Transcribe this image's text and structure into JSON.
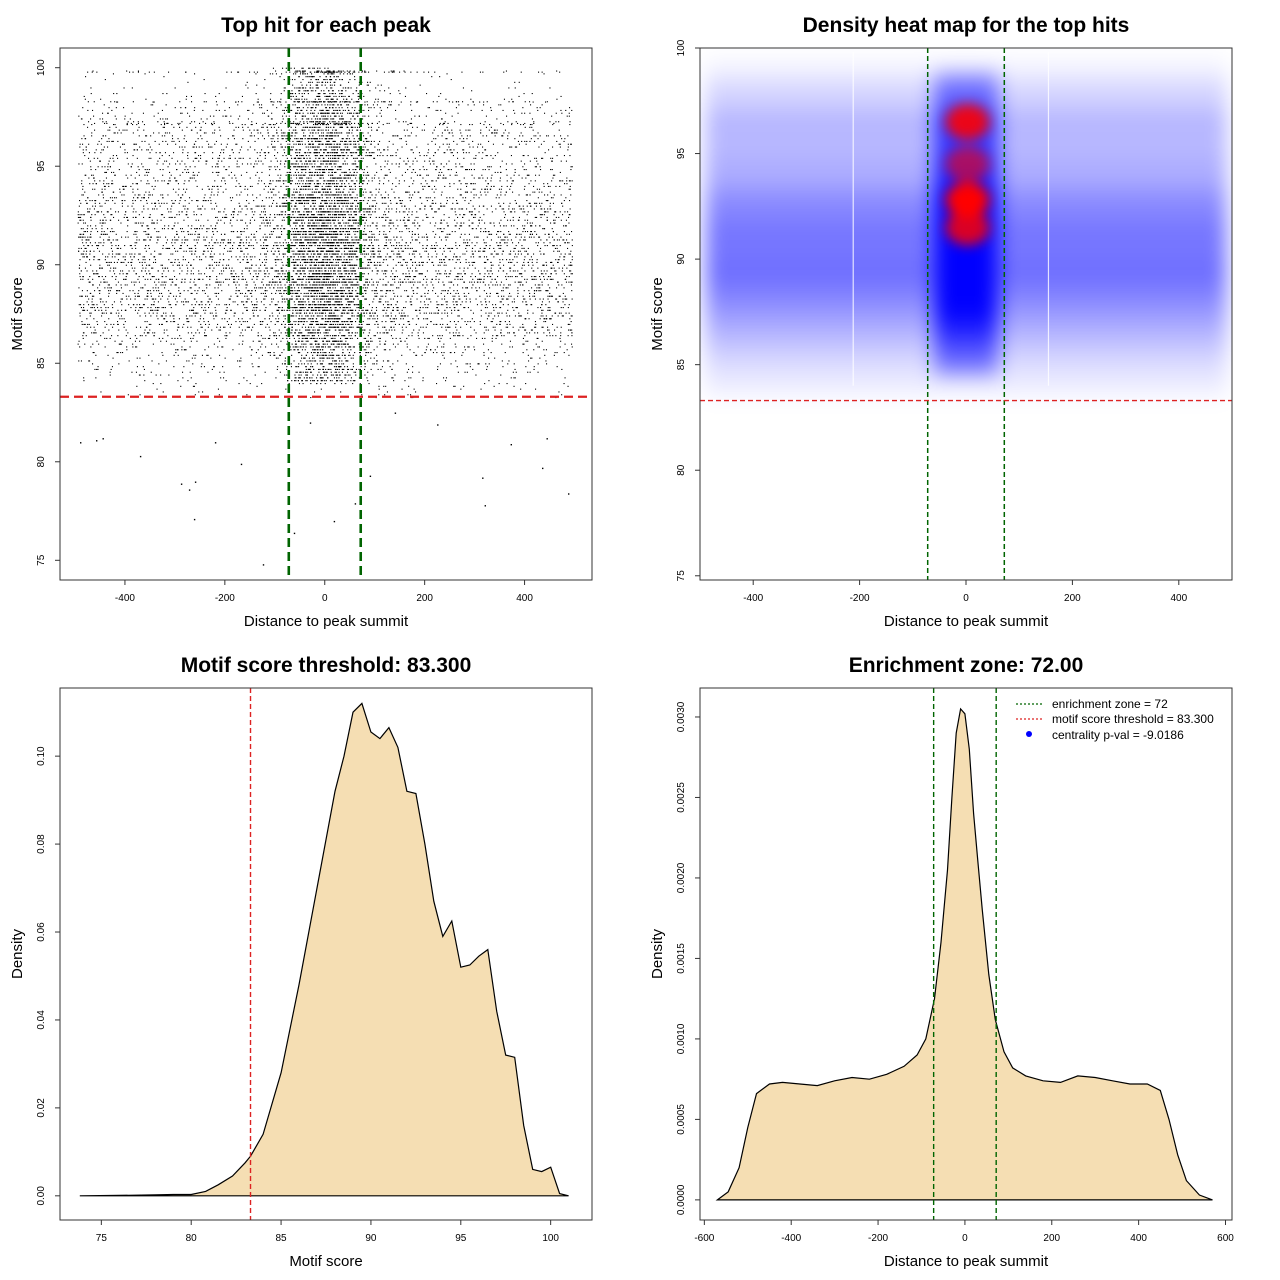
{
  "figure": {
    "colors": {
      "points": "#000000",
      "center_lines": "#006400",
      "threshold_line": "#dd2222",
      "density_fill": "#f5deb3",
      "heat_low": "#0000ff",
      "heat_high": "#ff0000"
    }
  },
  "chart_data": [
    {
      "type": "scatter",
      "title": "Top hit for each peak",
      "xlabel": "Distance to peak summit",
      "ylabel": "Motif score",
      "xlim": [
        -530,
        535
      ],
      "ylim": [
        74,
        101
      ],
      "xticks": [
        "-400",
        "-200",
        "0",
        "200",
        "400"
      ],
      "xtick_values": [
        -400,
        -200,
        0,
        200,
        400
      ],
      "yticks": [
        "75",
        "80",
        "85",
        "90",
        "95",
        "100"
      ],
      "ytick_values": [
        75,
        80,
        85,
        90,
        95,
        100
      ],
      "vlines": [
        -72,
        72
      ],
      "hline": 83.3,
      "n_points": 11000,
      "outliers": [
        {
          "x": -124,
          "y": 74.8
        },
        {
          "x": -262,
          "y": 77.1
        },
        {
          "x": -272,
          "y": 78.6
        },
        {
          "x": -288,
          "y": 78.9
        },
        {
          "x": -260,
          "y": 79.0
        },
        {
          "x": -168,
          "y": 79.9
        },
        {
          "x": -370,
          "y": 80.3
        },
        {
          "x": -490,
          "y": 81.0
        },
        {
          "x": -458,
          "y": 81.1
        },
        {
          "x": -445,
          "y": 81.2
        },
        {
          "x": -220,
          "y": 81.0
        },
        {
          "x": 315,
          "y": 79.2
        },
        {
          "x": 372,
          "y": 80.9
        },
        {
          "x": 435,
          "y": 79.7
        },
        {
          "x": 487,
          "y": 78.4
        },
        {
          "x": 320,
          "y": 77.8
        },
        {
          "x": 18,
          "y": 77.0
        },
        {
          "x": 60,
          "y": 77.9
        },
        {
          "x": -62,
          "y": 76.4
        },
        {
          "x": 90,
          "y": 79.3
        },
        {
          "x": 225,
          "y": 81.9
        },
        {
          "x": 444,
          "y": 81.2
        },
        {
          "x": -30,
          "y": 82.0
        },
        {
          "x": 140,
          "y": 82.5
        }
      ]
    },
    {
      "type": "heatmap",
      "title": "Density heat map for the top hits",
      "xlabel": "Distance to peak summit",
      "ylabel": "Motif score",
      "xlim": [
        -500,
        500
      ],
      "ylim": [
        74.8,
        100
      ],
      "xticks": [
        "-400",
        "-200",
        "0",
        "200",
        "400"
      ],
      "xtick_values": [
        -400,
        -200,
        0,
        200,
        400
      ],
      "yticks": [
        "75",
        "80",
        "85",
        "90",
        "95",
        "100"
      ],
      "ytick_values": [
        75,
        80,
        85,
        90,
        95,
        100
      ],
      "vlines": [
        -72,
        72
      ],
      "hline": 83.3
    },
    {
      "type": "area",
      "title": "Motif score threshold: 83.300",
      "xlabel": "Motif score",
      "ylabel": "Density",
      "xlim": [
        72.7,
        102.3
      ],
      "ylim": [
        -0.0055,
        0.1155
      ],
      "xticks": [
        "75",
        "80",
        "85",
        "90",
        "95",
        "100"
      ],
      "xtick_values": [
        75,
        80,
        85,
        90,
        95,
        100
      ],
      "yticks": [
        "0.00",
        "0.02",
        "0.04",
        "0.06",
        "0.08",
        "0.10"
      ],
      "ytick_values": [
        0,
        0.02,
        0.04,
        0.06,
        0.08,
        0.1
      ],
      "vlines": [
        83.3
      ],
      "x": [
        73.8,
        76,
        78,
        79,
        80,
        80.8,
        81.5,
        82.3,
        83,
        83.3,
        84,
        85,
        86,
        87,
        88,
        88.5,
        89,
        89.5,
        90,
        90.5,
        91,
        91.5,
        92,
        92.5,
        93,
        93.5,
        94,
        94.5,
        95,
        95.5,
        96,
        96.5,
        97,
        97.5,
        98,
        98.5,
        99,
        99.5,
        100,
        100.5,
        101
      ],
      "y": [
        0,
        0.0001,
        0.0002,
        0.0003,
        0.0003,
        0.001,
        0.0025,
        0.0045,
        0.0075,
        0.009,
        0.014,
        0.028,
        0.048,
        0.07,
        0.092,
        0.1,
        0.11,
        0.112,
        0.1055,
        0.104,
        0.1065,
        0.102,
        0.092,
        0.0915,
        0.08,
        0.067,
        0.059,
        0.0625,
        0.052,
        0.0525,
        0.0545,
        0.056,
        0.042,
        0.032,
        0.0315,
        0.016,
        0.006,
        0.0055,
        0.0065,
        0.0005,
        0
      ],
      "fill": "#f5deb3"
    },
    {
      "type": "area",
      "title": "Enrichment zone: 72.00",
      "xlabel": "Distance to peak summit",
      "ylabel": "Density",
      "xlim": [
        -610,
        615
      ],
      "ylim": [
        -0.000125,
        0.00318
      ],
      "xticks": [
        "-600",
        "-400",
        "-200",
        "0",
        "200",
        "400",
        "600"
      ],
      "xtick_values": [
        -600,
        -400,
        -200,
        0,
        200,
        400,
        600
      ],
      "yticks": [
        "0.0000",
        "0.0005",
        "0.0010",
        "0.0015",
        "0.0020",
        "0.0025",
        "0.0030"
      ],
      "ytick_values": [
        0,
        0.0005,
        0.001,
        0.0015,
        0.002,
        0.0025,
        0.003
      ],
      "vlines": [
        -72,
        72
      ],
      "x": [
        -570,
        -545,
        -520,
        -500,
        -480,
        -450,
        -420,
        -380,
        -340,
        -300,
        -260,
        -220,
        -180,
        -140,
        -110,
        -90,
        -70,
        -55,
        -40,
        -30,
        -20,
        -10,
        0,
        10,
        20,
        30,
        40,
        55,
        70,
        90,
        110,
        140,
        180,
        220,
        260,
        300,
        340,
        380,
        420,
        450,
        470,
        490,
        510,
        540,
        570
      ],
      "y": [
        0,
        5e-05,
        0.0002,
        0.00045,
        0.00066,
        0.00072,
        0.00073,
        0.00072,
        0.00071,
        0.00074,
        0.00076,
        0.00075,
        0.00078,
        0.00083,
        0.0009,
        0.001,
        0.00125,
        0.0016,
        0.00205,
        0.0025,
        0.0029,
        0.00305,
        0.00302,
        0.0028,
        0.0024,
        0.0021,
        0.0018,
        0.0014,
        0.00112,
        0.00092,
        0.00082,
        0.00077,
        0.00074,
        0.00073,
        0.00077,
        0.00076,
        0.00074,
        0.00072,
        0.00072,
        0.00068,
        0.0005,
        0.00028,
        0.00012,
        3e-05,
        0
      ],
      "fill": "#f5deb3",
      "legend": {
        "position": "top-right",
        "entries": [
          {
            "label": "enrichment zone = 72",
            "color": "#006400",
            "style": "dotted-line"
          },
          {
            "label": "motif score threshold = 83.300",
            "color": "#dd2222",
            "style": "dotted-line"
          },
          {
            "label": "centrality p-val = -9.0186",
            "color": "#0000ff",
            "style": "point"
          }
        ]
      }
    }
  ]
}
